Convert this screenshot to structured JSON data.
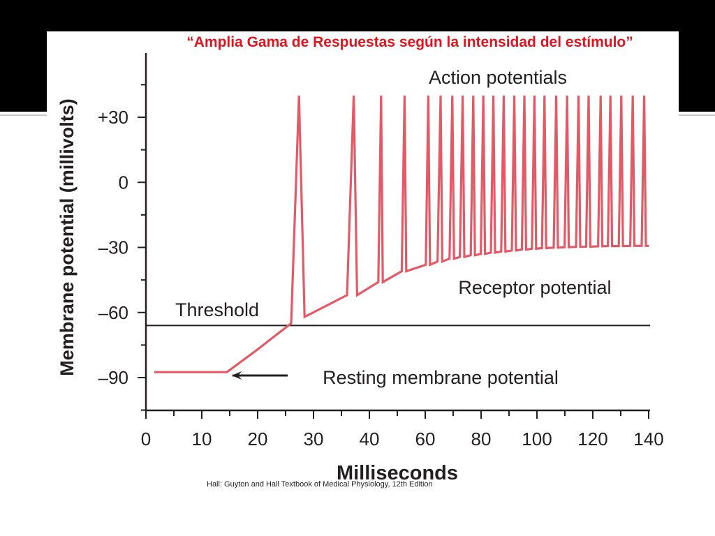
{
  "slide": {
    "title": "“Amplia Gama de Respuestas según la intensidad del estímulo”",
    "source": "Hall: Guyton and Hall Textbook of Medical Physiology, 12th Edition"
  },
  "colors": {
    "trace": "#e35a66",
    "title": "#e0141e",
    "axis": "#231f20",
    "band": "#000000"
  },
  "chart_data": {
    "type": "line",
    "title": "",
    "xlabel": "Milliseconds",
    "ylabel": "Membrane potential (millivolts)",
    "x_ticks": [
      "0",
      "10",
      "20",
      "30",
      "40",
      "50",
      "60",
      "70",
      "80",
      "90",
      "100",
      "110",
      "120",
      "130",
      "140"
    ],
    "x_tick_labels": [
      "0",
      "10",
      "20",
      "30",
      "40",
      "60",
      "80",
      "100",
      "120",
      "140"
    ],
    "y_ticks": [
      30,
      0,
      -30,
      -60,
      -90
    ],
    "y_tick_labels": [
      "+30",
      "0",
      "–30",
      "–60",
      "–90"
    ],
    "xlim": [
      0,
      140
    ],
    "ylim": [
      -103,
      58
    ],
    "grid": false,
    "threshold": -66,
    "annotations": {
      "action": "Action potentials",
      "receptor": "Receptor potential",
      "threshold": "Threshold",
      "resting": "Resting membrane potential"
    },
    "series": [
      {
        "points": [
          [
            1.5,
            -87.5
          ],
          [
            14.5,
            -87.5
          ],
          [
            20,
            -77
          ],
          [
            26,
            -65
          ],
          [
            27.4,
            40
          ],
          [
            28.4,
            -62
          ],
          [
            36,
            -52
          ],
          [
            37.2,
            40
          ],
          [
            37.8,
            -52
          ],
          [
            43.2,
            -46
          ],
          [
            44.2,
            40
          ],
          [
            44.8,
            -46
          ],
          [
            51.6,
            -41
          ],
          [
            52.6,
            40
          ],
          [
            53.2,
            -41
          ],
          [
            60.2,
            -38
          ],
          [
            61.1,
            40
          ],
          [
            61.7,
            -38
          ],
          [
            64.4,
            -36.5
          ],
          [
            65.5,
            40
          ],
          [
            66.1,
            -36.5
          ],
          [
            68.7,
            -35.2
          ],
          [
            69.7,
            40
          ],
          [
            70.3,
            -35.2
          ],
          [
            72.4,
            -34.4
          ],
          [
            73.4,
            40
          ],
          [
            74.0,
            -34.4
          ],
          [
            76.3,
            -33.6
          ],
          [
            77.2,
            40
          ],
          [
            77.8,
            -33.6
          ],
          [
            79.9,
            -33.0
          ],
          [
            80.8,
            40
          ],
          [
            81.4,
            -33.0
          ],
          [
            83.5,
            -32.4
          ],
          [
            84.4,
            40
          ],
          [
            85.0,
            -32.4
          ],
          [
            87.2,
            -31.9
          ],
          [
            88.1,
            40
          ],
          [
            88.7,
            -31.9
          ],
          [
            91.0,
            -31.4
          ],
          [
            91.9,
            40
          ],
          [
            92.5,
            -31.4
          ],
          [
            94.6,
            -31.0
          ],
          [
            95.5,
            40
          ],
          [
            96.1,
            -31.0
          ],
          [
            98.2,
            -30.6
          ],
          [
            99.1,
            40
          ],
          [
            99.7,
            -30.6
          ],
          [
            101.8,
            -30.3
          ],
          [
            102.7,
            40
          ],
          [
            103.3,
            -30.3
          ],
          [
            106.0,
            -30.1
          ],
          [
            106.9,
            40
          ],
          [
            107.5,
            -30.1
          ],
          [
            109.9,
            -29.9
          ],
          [
            110.8,
            40
          ],
          [
            111.4,
            -29.9
          ],
          [
            114.0,
            -29.7
          ],
          [
            114.9,
            40
          ],
          [
            115.5,
            -29.7
          ],
          [
            117.6,
            -29.6
          ],
          [
            118.5,
            40
          ],
          [
            119.1,
            -29.6
          ],
          [
            121.9,
            -29.5
          ],
          [
            122.8,
            40
          ],
          [
            123.4,
            -29.5
          ],
          [
            125.4,
            -29.4
          ],
          [
            126.3,
            40
          ],
          [
            126.9,
            -29.4
          ],
          [
            129.3,
            -29.4
          ],
          [
            130.2,
            40
          ],
          [
            130.8,
            -29.4
          ],
          [
            133.4,
            -29.3
          ],
          [
            134.3,
            40
          ],
          [
            134.9,
            -29.3
          ],
          [
            137.5,
            -29.3
          ],
          [
            138.4,
            40
          ],
          [
            139.0,
            -29.3
          ],
          [
            140.1,
            -29.3
          ]
        ]
      }
    ]
  }
}
